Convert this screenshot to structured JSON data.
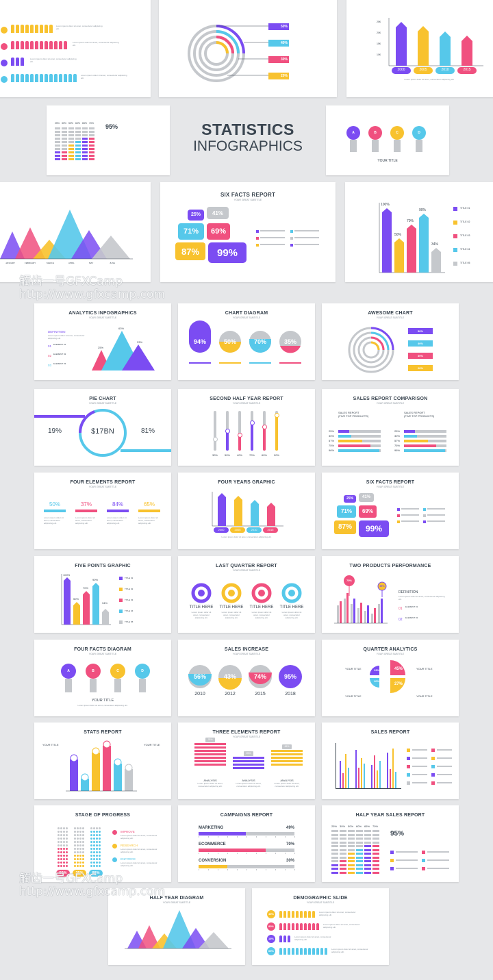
{
  "colors": {
    "purple": "#7b4cf2",
    "pink": "#f0507f",
    "yellow": "#f8c22e",
    "cyan": "#56c8ea",
    "gray": "#c5c8cc",
    "dark": "#3a4550",
    "text": "#8a939c"
  },
  "hero": {
    "title": "STATISTICS",
    "subtitle": "INFOGRAPHICS"
  },
  "subtitle_generic": "YOUR GREAT SUBTITLE",
  "lorem": "Lorem ipsum dolor sit amet, consectetur adipiscing elit.",
  "top": {
    "donut_pcts": [
      "50%",
      "40%",
      "30%",
      "20%"
    ],
    "years": [
      "2000",
      "2005",
      "2010",
      "2015"
    ],
    "yticks": [
      "25K",
      "20K",
      "15K",
      "10K"
    ],
    "stats_pcts": [
      "25%",
      "30%",
      "50%",
      "60%",
      "65%",
      "70%"
    ],
    "big_pct": "95%",
    "bulbs": [
      "A",
      "B",
      "C",
      "D"
    ],
    "your_title": "YOUR TITLE",
    "months": [
      "JANUARY",
      "FEBRUARY",
      "MARCH",
      "APRIL",
      "MAY",
      "JUNE"
    ],
    "six_facts_title": "SIX FACTS REPORT",
    "six_facts": [
      "25%",
      "41%",
      "71%",
      "69%",
      "87%",
      "99%"
    ],
    "five_points": [
      "100%",
      "50%",
      "70%",
      "90%",
      "34%"
    ],
    "titles": [
      "TITLE 01",
      "TITLE 02",
      "TITLE 03",
      "TITLE 04",
      "TITLE 05"
    ]
  },
  "watermark": {
    "line1": "觸齿一号GFXCamp",
    "line2": "http://www.gfxcamp.com"
  },
  "slides": {
    "analytics": {
      "title": "ANALYTICS INFOGRAPHICS",
      "definition": "DEFINITION",
      "elements": [
        "01",
        "02",
        "03"
      ],
      "element_labels": [
        "ELEMENT 01",
        "ELEMENT 02",
        "ELEMENT 03"
      ],
      "peaks": [
        "25%",
        "63%",
        "33%"
      ]
    },
    "chart_diagram": {
      "title": "CHART DIAGRAM",
      "values": [
        "94%",
        "50%",
        "70%",
        "35%"
      ]
    },
    "awesome": {
      "title": "AWESOME CHART",
      "values": [
        "50%",
        "40%",
        "30%",
        "20%"
      ]
    },
    "pie": {
      "title": "PIE CHART",
      "left": "19%",
      "center": "$17BN",
      "right": "81%"
    },
    "second_half": {
      "title": "SECOND HALF YEAR REPORT",
      "values": [
        "30%",
        "50%",
        "40%",
        "70%",
        "60%",
        "90%"
      ]
    },
    "sales_comp": {
      "title": "SALES REPORT COMPARISON",
      "col_title": "SALES REPORT",
      "col_sub": "(FIVE TOP PRODUCTS)",
      "rows": [
        "25%",
        "30%",
        "57%",
        "75%",
        "96%"
      ]
    },
    "four_elements": {
      "title": "FOUR ELEMENTS REPORT",
      "values": [
        "50%",
        "37%",
        "84%",
        "65%"
      ]
    },
    "four_years": {
      "title": "FOUR YEARS GRAPHIC",
      "years": [
        "2000",
        "2005",
        "2010",
        "2015"
      ]
    },
    "six_facts": {
      "title": "SIX FACTS REPORT",
      "values": [
        "25%",
        "41%",
        "71%",
        "69%",
        "87%",
        "99%"
      ]
    },
    "five_points": {
      "title": "FIVE POINTS GRAPHIC",
      "values": [
        "100%",
        "50%",
        "70%",
        "90%",
        "34%"
      ]
    },
    "last_quarter": {
      "title": "LAST QUARTER REPORT",
      "item": "TITLE HERE"
    },
    "two_products": {
      "title": "TWO PRODUCTS PERFORMANCE",
      "p1": "75%",
      "p2": "35%",
      "definition": "DEFINITION",
      "e1": "01",
      "e2": "02",
      "el1": "ELEMENT 01",
      "el2": "ELEMENT 02"
    },
    "four_facts": {
      "title": "FOUR FACTS DIAGRAM",
      "letters": [
        "A",
        "B",
        "C",
        "D"
      ],
      "your_title": "YOUR TITLE"
    },
    "sales_increase": {
      "title": "SALES INCREASE",
      "values": [
        "56%",
        "43%",
        "74%",
        "95%"
      ],
      "years": [
        "2010",
        "2012",
        "2015",
        "2018"
      ]
    },
    "quarter": {
      "title": "QUARTER ANALYTICS",
      "values": [
        "13%",
        "45%",
        "10%",
        "27%"
      ],
      "your_title": "YOUR TITLE"
    },
    "stats_report": {
      "title": "STATS REPORT",
      "your_title": "YOUR TITLE"
    },
    "three_elements": {
      "title": "THREE ELEMENTS REPORT",
      "values": [
        "78%",
        "25%",
        "45%"
      ],
      "label": "ANALYSIS"
    },
    "sales_report": {
      "title": "SALES REPORT"
    },
    "stage": {
      "title": "STAGE OF PROGRESS",
      "values": [
        "50%",
        "35%",
        "88%"
      ],
      "steps": [
        "IMPROVE",
        "RESEARCH",
        "ENFORCE"
      ]
    },
    "campaigns": {
      "title": "CAMPAIGNS REPORT",
      "rows": [
        {
          "name": "MARKETING",
          "value": "49%"
        },
        {
          "name": "ECOMMERCE",
          "value": "70%"
        },
        {
          "name": "CONVERSION",
          "value": "30%"
        }
      ]
    },
    "half_year_sales": {
      "title": "HALF YEAR SALES REPORT",
      "pcts": [
        "25%",
        "30%",
        "50%",
        "60%",
        "65%",
        "70%"
      ],
      "big": "95%"
    },
    "half_year_diagram": {
      "title": "HALF YEAR DIAGRAM"
    },
    "demographic": {
      "title": "DEMOGRAPHIC SLIDE",
      "values": [
        "45%",
        "80%",
        "18%",
        "65%"
      ]
    }
  }
}
